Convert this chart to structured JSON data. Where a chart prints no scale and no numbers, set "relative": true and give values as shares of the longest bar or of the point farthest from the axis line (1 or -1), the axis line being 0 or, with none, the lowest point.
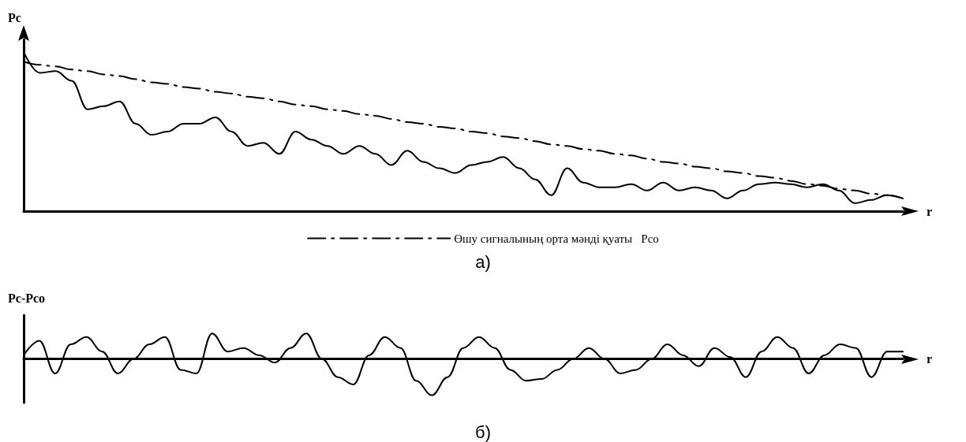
{
  "chart_data": [
    {
      "type": "line",
      "relative": true,
      "ylabel": "Pc",
      "xlabel": "r",
      "legend": "bottom",
      "grid": false,
      "marker": "none",
      "annotations": [
        "а)"
      ],
      "categories": [
        null,
        null,
        null,
        null,
        null,
        null,
        null,
        null,
        null,
        null,
        null,
        null,
        null,
        null,
        null,
        null,
        null,
        null,
        null,
        null,
        null,
        null,
        null,
        null,
        null,
        null,
        null,
        null,
        null,
        null,
        null,
        null,
        null,
        null,
        null,
        null,
        null,
        null,
        null,
        null,
        null,
        null,
        null,
        null,
        null,
        null,
        null,
        null,
        null,
        null,
        null,
        null,
        null,
        null,
        null,
        null
      ],
      "series": [
        {
          "color": "#000000",
          "line_style": "solid",
          "values": [
            1.0,
            0.87,
            0.88,
            0.82,
            0.64,
            0.66,
            0.69,
            0.55,
            0.48,
            0.5,
            0.55,
            0.55,
            0.59,
            0.5,
            0.41,
            0.43,
            0.36,
            0.5,
            0.45,
            0.41,
            0.36,
            0.41,
            0.36,
            0.29,
            0.38,
            0.31,
            0.27,
            0.24,
            0.29,
            0.31,
            0.34,
            0.27,
            0.2,
            0.1,
            0.27,
            0.18,
            0.15,
            0.15,
            0.17,
            0.13,
            0.18,
            0.13,
            0.15,
            0.13,
            0.08,
            0.13,
            0.17,
            0.18,
            0.17,
            0.15,
            0.17,
            0.13,
            0.05,
            0.07,
            0.1,
            0.08
          ]
        },
        {
          "name": "Өшу сигналының орта мәнді қуаты   Pco",
          "color": "#000000",
          "line_style": "dashed",
          "values": [
            0.94,
            0.92,
            0.91,
            0.89,
            0.88,
            0.86,
            0.85,
            0.83,
            0.81,
            0.8,
            0.78,
            0.77,
            0.75,
            0.74,
            0.72,
            0.71,
            0.69,
            0.67,
            0.66,
            0.64,
            0.63,
            0.61,
            0.6,
            0.58,
            0.56,
            0.55,
            0.53,
            0.52,
            0.5,
            0.49,
            0.47,
            0.46,
            0.44,
            0.42,
            0.41,
            0.39,
            0.38,
            0.36,
            0.35,
            0.33,
            0.31,
            0.3,
            0.28,
            0.27,
            0.25,
            0.24,
            0.22,
            0.21,
            0.19,
            0.17,
            0.16,
            0.14,
            0.13,
            0.11,
            0.1,
            0.08
          ]
        }
      ]
    },
    {
      "type": "line",
      "relative": true,
      "ylabel": "Pc-Pco",
      "xlabel": "r",
      "grid": false,
      "marker": "none",
      "legend": false,
      "annotations": [
        "б)"
      ],
      "categories": [
        null,
        null,
        null,
        null,
        null,
        null,
        null,
        null,
        null,
        null,
        null,
        null,
        null,
        null,
        null,
        null,
        null,
        null,
        null,
        null,
        null,
        null,
        null,
        null,
        null,
        null,
        null,
        null,
        null,
        null,
        null,
        null,
        null,
        null,
        null,
        null,
        null,
        null,
        null,
        null,
        null,
        null,
        null,
        null,
        null,
        null,
        null,
        null,
        null,
        null,
        null,
        null,
        null,
        null,
        null,
        null,
        null
      ],
      "series": [
        {
          "color": "#000000",
          "line_style": "solid",
          "values": [
            0.1,
            0.5,
            -0.4,
            0.4,
            0.6,
            0.2,
            -0.4,
            0.0,
            0.4,
            0.6,
            -0.3,
            -0.4,
            0.7,
            0.2,
            0.3,
            0.1,
            -0.1,
            0.3,
            0.7,
            0.0,
            -0.5,
            -0.7,
            0.1,
            0.6,
            0.3,
            -0.6,
            -1.0,
            -0.5,
            0.3,
            0.6,
            0.3,
            -0.3,
            -0.6,
            -0.55,
            -0.3,
            0.0,
            0.3,
            0.0,
            -0.4,
            -0.3,
            0.0,
            0.4,
            0.1,
            -0.2,
            0.3,
            0.05,
            -0.5,
            0.2,
            0.6,
            0.3,
            -0.4,
            0.1,
            0.4,
            0.3,
            -0.5,
            0.2,
            0.2
          ]
        }
      ]
    }
  ]
}
